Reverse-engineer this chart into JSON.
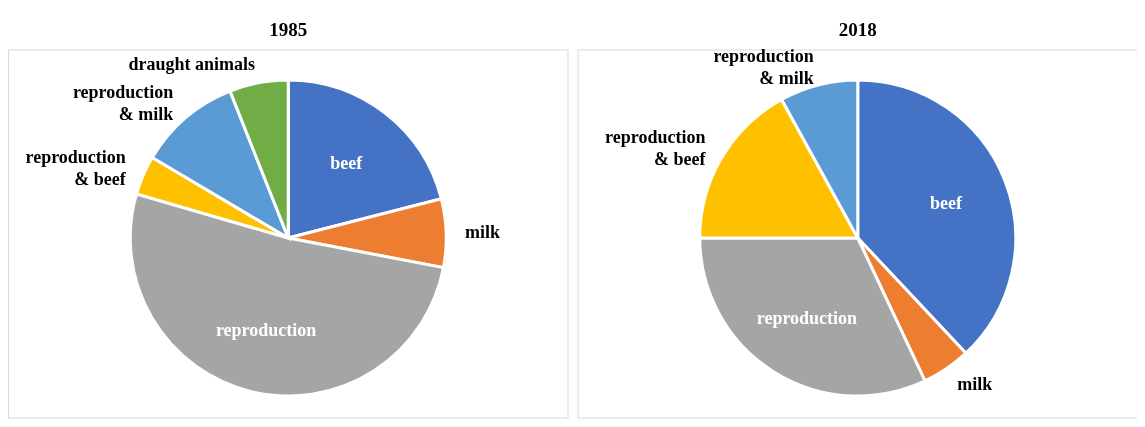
{
  "chart_data": [
    {
      "type": "pie",
      "title": "1985",
      "categories": [
        "beef",
        "milk",
        "reproduction",
        "reproduction & beef",
        "reproduction & milk",
        "draught animals"
      ],
      "values": [
        21,
        7,
        51.5,
        4,
        10.5,
        6
      ],
      "colors": [
        "#4472c4",
        "#ed7d31",
        "#a5a5a5",
        "#ffc000",
        "#5b9bd5",
        "#70ad47"
      ]
    },
    {
      "type": "pie",
      "title": "2018",
      "categories": [
        "beef",
        "milk",
        "reproduction",
        "reproduction & beef",
        "reproduction & milk"
      ],
      "values": [
        38,
        5,
        32,
        17,
        8
      ],
      "colors": [
        "#4472c4",
        "#ed7d31",
        "#a5a5a5",
        "#ffc000",
        "#5b9bd5"
      ]
    }
  ]
}
